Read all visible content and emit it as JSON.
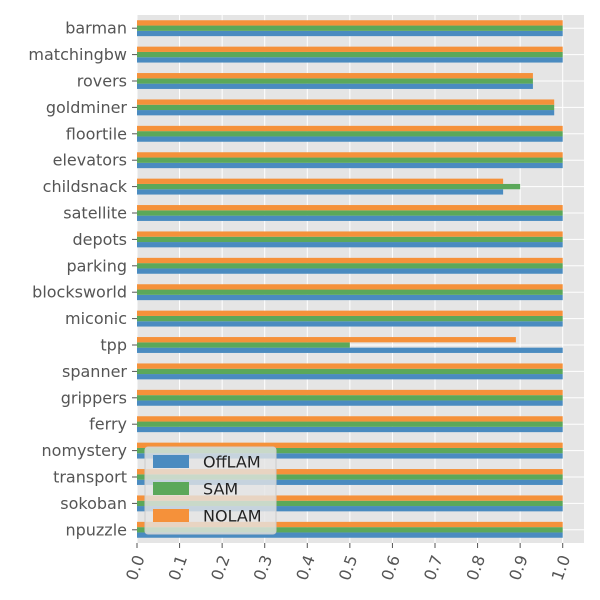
{
  "chart_data": {
    "type": "bar",
    "orientation": "horizontal",
    "categories": [
      "barman",
      "matchingbw",
      "rovers",
      "goldminer",
      "floortile",
      "elevators",
      "childsnack",
      "satellite",
      "depots",
      "parking",
      "blocksworld",
      "miconic",
      "tpp",
      "spanner",
      "grippers",
      "ferry",
      "nomystery",
      "transport",
      "sokoban",
      "npuzzle"
    ],
    "series": [
      {
        "name": "OffLAM",
        "color": "#4a8bc0",
        "values": [
          1.0,
          1.0,
          0.93,
          0.98,
          1.0,
          1.0,
          0.86,
          1.0,
          1.0,
          1.0,
          1.0,
          1.0,
          1.0,
          1.0,
          1.0,
          1.0,
          1.0,
          1.0,
          1.0,
          1.0
        ]
      },
      {
        "name": "SAM",
        "color": "#5ba85a",
        "values": [
          1.0,
          1.0,
          0.93,
          0.98,
          1.0,
          1.0,
          0.9,
          1.0,
          1.0,
          1.0,
          1.0,
          1.0,
          0.5,
          1.0,
          1.0,
          1.0,
          1.0,
          1.0,
          1.0,
          1.0
        ]
      },
      {
        "name": "NOLAM",
        "color": "#f5913a",
        "values": [
          1.0,
          1.0,
          0.93,
          0.98,
          1.0,
          1.0,
          0.86,
          1.0,
          1.0,
          1.0,
          1.0,
          1.0,
          0.89,
          1.0,
          1.0,
          1.0,
          1.0,
          1.0,
          1.0,
          1.0
        ]
      }
    ],
    "xticks": [
      "0.0",
      "0.1",
      "0.2",
      "0.3",
      "0.4",
      "0.5",
      "0.6",
      "0.7",
      "0.8",
      "0.9",
      "1.0"
    ],
    "xlim": [
      0.0,
      1.05
    ],
    "grid": true,
    "legend_position": "bottom-left",
    "title": "",
    "xlabel": "",
    "ylabel": ""
  }
}
